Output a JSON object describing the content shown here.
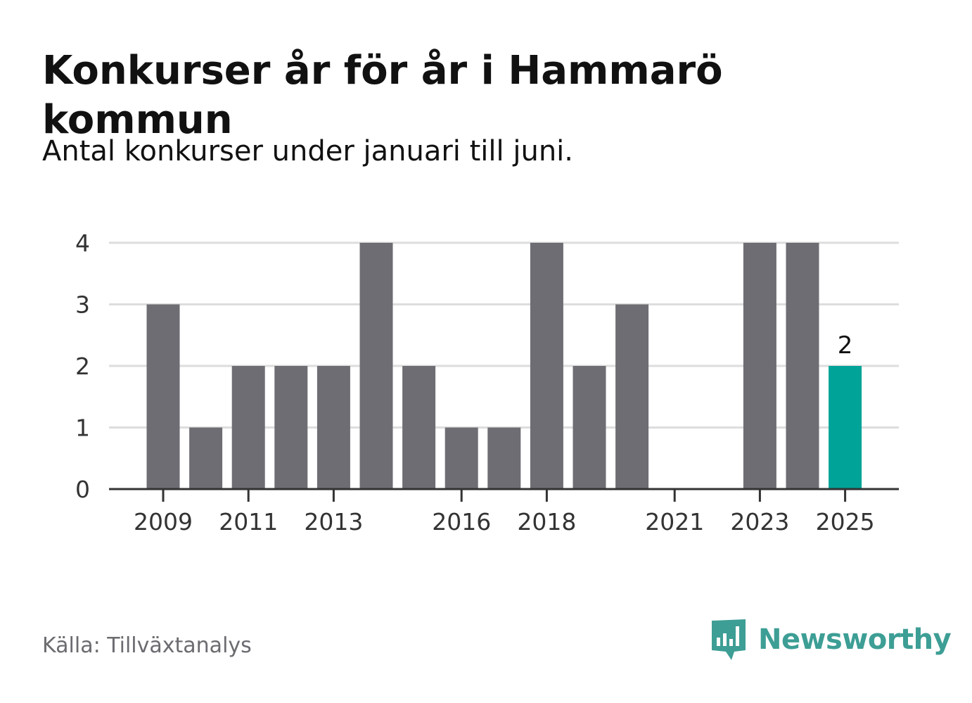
{
  "header": {
    "title": "Konkurser år för år i Hammarö kommun",
    "subtitle": "Antal konkurser under januari till juni."
  },
  "footer": {
    "source": "Källa: Tillväxtanalys",
    "brand": "Newsworthy",
    "brand_icon": "bar-chart-speech-bubble-icon"
  },
  "colors": {
    "bar": "#6e6d73",
    "highlight": "#00a398",
    "grid": "#dddddd",
    "axis": "#333333",
    "brand": "#3d9e95"
  },
  "chart_data": {
    "type": "bar",
    "categories": [
      "2009",
      "2010",
      "2011",
      "2012",
      "2013",
      "2014",
      "2015",
      "2016",
      "2017",
      "2018",
      "2019",
      "2020",
      "2021",
      "2022",
      "2023",
      "2024",
      "2025"
    ],
    "values": [
      3,
      1,
      2,
      2,
      2,
      4,
      2,
      1,
      1,
      4,
      2,
      3,
      0,
      0,
      4,
      4,
      2
    ],
    "x_tick_labels": [
      "2009",
      "2011",
      "2013",
      "2016",
      "2018",
      "2021",
      "2023",
      "2025"
    ],
    "y_ticks": [
      "0",
      "1",
      "2",
      "3",
      "4"
    ],
    "ylim": [
      0,
      4
    ],
    "highlight_category": "2025",
    "data_labels": [
      {
        "category": "2025",
        "text": "2"
      }
    ],
    "grid": true,
    "xlabel": "",
    "ylabel": ""
  }
}
